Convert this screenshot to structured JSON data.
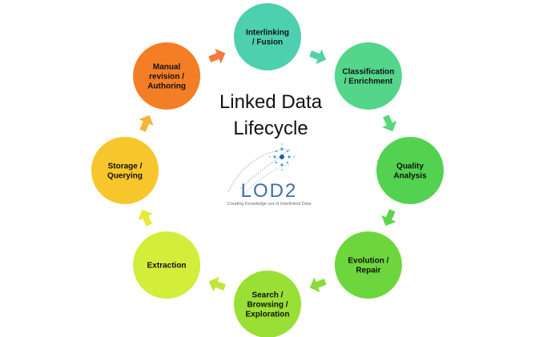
{
  "diagram": {
    "title_lines": [
      "Linked Data",
      "Lifecycle"
    ],
    "logo": {
      "name": "LOD2",
      "tagline": "Creating Knowledge out of Interlinked Data"
    },
    "stages": [
      {
        "lines": [
          "Interlinking",
          "/ Fusion"
        ],
        "color": "#4dd0b0"
      },
      {
        "lines": [
          "Classification",
          "/ Enrichment"
        ],
        "color": "#54d68a"
      },
      {
        "lines": [
          "Quality",
          "Analysis"
        ],
        "color": "#53d151"
      },
      {
        "lines": [
          "Evolution /",
          "Repair"
        ],
        "color": "#6dd63d"
      },
      {
        "lines": [
          "Search /",
          "Browsing /",
          "Exploration"
        ],
        "color": "#9adf36"
      },
      {
        "lines": [
          "Extraction"
        ],
        "color": "#d2ed3a"
      },
      {
        "lines": [
          "Storage /",
          "Querying"
        ],
        "color": "#f7c62c"
      },
      {
        "lines": [
          "Manual",
          "revision /",
          "Authoring"
        ],
        "color": "#f47e26"
      }
    ],
    "arrow_colors": [
      "#51d3a3",
      "#58d87a",
      "#5cd54a",
      "#8adb3a",
      "#bde637",
      "#e6e83a",
      "#f6b336",
      "#f37a3c"
    ]
  }
}
